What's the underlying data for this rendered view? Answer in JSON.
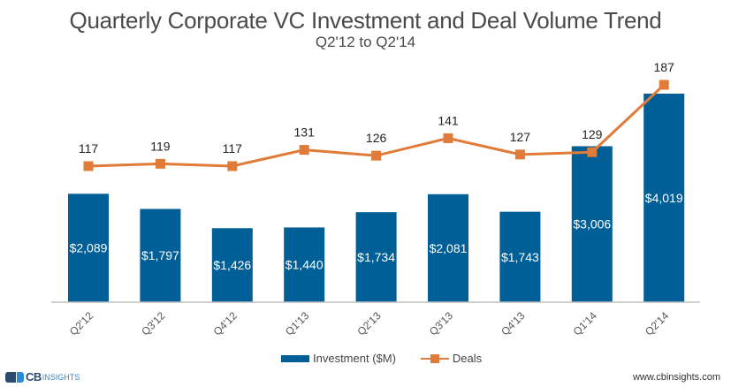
{
  "chart_data": {
    "type": "bar",
    "title": "Quarterly Corporate VC Investment and Deal Volume Trend",
    "subtitle": "Q2'12 to Q2'14",
    "xlabel": "",
    "ylabel": "",
    "categories": [
      "Q2'12",
      "Q3'12",
      "Q4'12",
      "Q1'13",
      "Q2'13",
      "Q3'13",
      "Q4'13",
      "Q1'14",
      "Q2'14"
    ],
    "series": [
      {
        "name": "Investment ($M)",
        "type": "bar",
        "color": "#005f96",
        "values": [
          2089,
          1797,
          1426,
          1440,
          1734,
          2081,
          1743,
          3006,
          4019
        ],
        "labels": [
          "$2,089",
          "$1,797",
          "$1,426",
          "$1,440",
          "$1,734",
          "$2,081",
          "$1,743",
          "$3,006",
          "$4,019"
        ]
      },
      {
        "name": "Deals",
        "type": "line",
        "color": "#e07b39",
        "values": [
          117,
          119,
          117,
          131,
          126,
          141,
          127,
          129,
          187
        ],
        "labels": [
          "117",
          "119",
          "117",
          "131",
          "126",
          "141",
          "127",
          "129",
          "187"
        ]
      }
    ],
    "ylim_investment": [
      0,
      4019
    ],
    "ylim_deals": [
      117,
      187
    ],
    "grid": false,
    "legend": "bottom"
  },
  "legend": {
    "investment_label": "Investment ($M)",
    "deals_label": "Deals"
  },
  "footer": {
    "logo_cb": "CB",
    "logo_insights": "INSIGHTS",
    "website": "www.cbinsights.com"
  }
}
